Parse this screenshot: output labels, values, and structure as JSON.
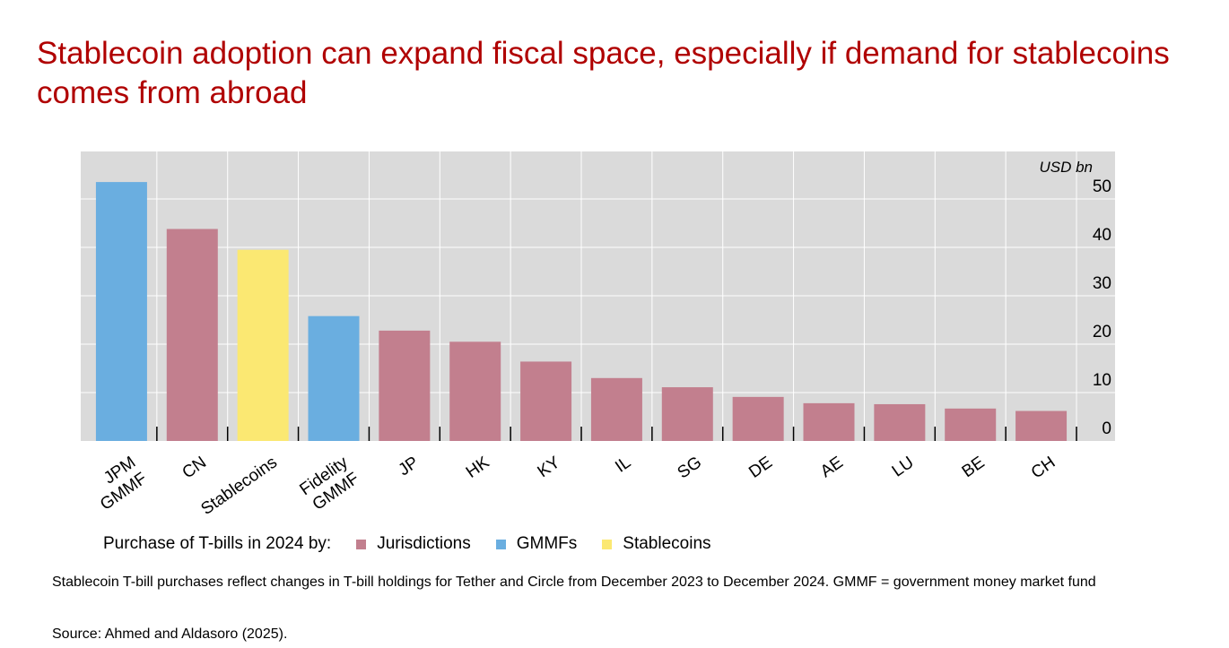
{
  "title": "Stablecoin adoption can expand fiscal space, especially if demand for stablecoins comes from abroad",
  "legend": {
    "lead": "Purchase of T-bills in 2024 by:",
    "items": [
      {
        "label": "Jurisdictions",
        "color": "#c27f8e"
      },
      {
        "label": "GMMFs",
        "color": "#6aaee0"
      },
      {
        "label": "Stablecoins",
        "color": "#fbe872"
      }
    ]
  },
  "footnote": "Stablecoin T-bill purchases reflect changes in T-bill holdings for Tether and Circle from December 2023 to December 2024. GMMF = government money market fund",
  "source": "Source: Ahmed and Aldasoro (2025).",
  "chart_data": {
    "type": "bar",
    "unit_label": "USD bn",
    "categories": [
      [
        "JPM",
        "GMMF"
      ],
      [
        "CN"
      ],
      [
        "Stablecoins"
      ],
      [
        "Fidelity",
        "GMMF"
      ],
      [
        "JP"
      ],
      [
        "HK"
      ],
      [
        "KY"
      ],
      [
        "IL"
      ],
      [
        "SG"
      ],
      [
        "DE"
      ],
      [
        "AE"
      ],
      [
        "LU"
      ],
      [
        "BE"
      ],
      [
        "CH"
      ]
    ],
    "values": [
      53.5,
      43.8,
      39.5,
      25.8,
      22.8,
      20.5,
      16.4,
      13.0,
      11.1,
      9.1,
      7.8,
      7.6,
      6.7,
      6.2
    ],
    "groups": [
      "GMMFs",
      "Jurisdictions",
      "Stablecoins",
      "GMMFs",
      "Jurisdictions",
      "Jurisdictions",
      "Jurisdictions",
      "Jurisdictions",
      "Jurisdictions",
      "Jurisdictions",
      "Jurisdictions",
      "Jurisdictions",
      "Jurisdictions",
      "Jurisdictions"
    ],
    "colors": {
      "Jurisdictions": "#c27f8e",
      "GMMFs": "#6aaee0",
      "Stablecoins": "#fbe872"
    },
    "yticks": [
      0,
      10,
      20,
      30,
      40,
      50
    ],
    "ylim": [
      0,
      60
    ],
    "grid": true,
    "axis_position": "right"
  }
}
